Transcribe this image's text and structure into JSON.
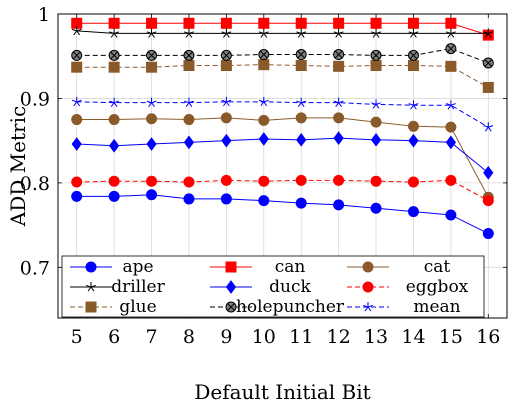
{
  "chart_data": {
    "type": "line",
    "xlabel": "Default Initial Bit",
    "ylabel": "ADD Metric",
    "x": [
      5,
      6,
      7,
      8,
      9,
      10,
      11,
      12,
      13,
      14,
      15,
      16
    ],
    "xlim": [
      4.5,
      16.5
    ],
    "ylim": [
      0.64,
      1.0
    ],
    "yticks": [
      0.7,
      0.8,
      0.9,
      1.0
    ],
    "ytick_labels": [
      "0.7",
      "0.8",
      "0.9",
      "1"
    ],
    "grid": true,
    "legend_placement": "bottom-inside",
    "series": [
      {
        "name": "ape",
        "color": "#0000ff",
        "marker": "circle",
        "dash": "solid",
        "values": [
          0.784,
          0.784,
          0.786,
          0.781,
          0.781,
          0.779,
          0.776,
          0.774,
          0.77,
          0.766,
          0.762,
          0.74
        ]
      },
      {
        "name": "can",
        "color": "#ff0000",
        "marker": "square",
        "dash": "solid",
        "values": [
          0.989,
          0.989,
          0.989,
          0.989,
          0.989,
          0.989,
          0.989,
          0.989,
          0.989,
          0.989,
          0.989,
          0.975
        ]
      },
      {
        "name": "cat",
        "color": "#8b5a2b",
        "marker": "circle",
        "dash": "solid",
        "values": [
          0.875,
          0.875,
          0.876,
          0.875,
          0.877,
          0.874,
          0.877,
          0.877,
          0.872,
          0.867,
          0.866,
          0.783
        ]
      },
      {
        "name": "driller",
        "color": "#000000",
        "marker": "star",
        "dash": "solid",
        "values": [
          0.98,
          0.977,
          0.977,
          0.977,
          0.977,
          0.977,
          0.977,
          0.977,
          0.977,
          0.977,
          0.977,
          0.977
        ]
      },
      {
        "name": "duck",
        "color": "#0000ff",
        "marker": "diamond",
        "dash": "solid",
        "values": [
          0.846,
          0.844,
          0.846,
          0.848,
          0.85,
          0.852,
          0.851,
          0.853,
          0.851,
          0.85,
          0.848,
          0.812
        ]
      },
      {
        "name": "eggbox",
        "color": "#ff0000",
        "marker": "circle",
        "dash": "dashed",
        "values": [
          0.801,
          0.802,
          0.802,
          0.801,
          0.803,
          0.802,
          0.803,
          0.803,
          0.802,
          0.801,
          0.803,
          0.779
        ]
      },
      {
        "name": "glue",
        "color": "#8b5a2b",
        "marker": "square",
        "dash": "dashed",
        "values": [
          0.937,
          0.937,
          0.937,
          0.939,
          0.939,
          0.94,
          0.939,
          0.938,
          0.939,
          0.939,
          0.938,
          0.913
        ]
      },
      {
        "name": "holepuncher",
        "color": "#000000",
        "marker": "otimes",
        "dash": "dashed",
        "values": [
          0.951,
          0.951,
          0.951,
          0.951,
          0.951,
          0.952,
          0.952,
          0.952,
          0.951,
          0.951,
          0.959,
          0.942
        ]
      },
      {
        "name": "mean",
        "color": "#0000ff",
        "marker": "star",
        "dash": "dashed",
        "values": [
          0.896,
          0.895,
          0.895,
          0.895,
          0.896,
          0.896,
          0.895,
          0.895,
          0.893,
          0.892,
          0.892,
          0.866
        ]
      }
    ]
  }
}
